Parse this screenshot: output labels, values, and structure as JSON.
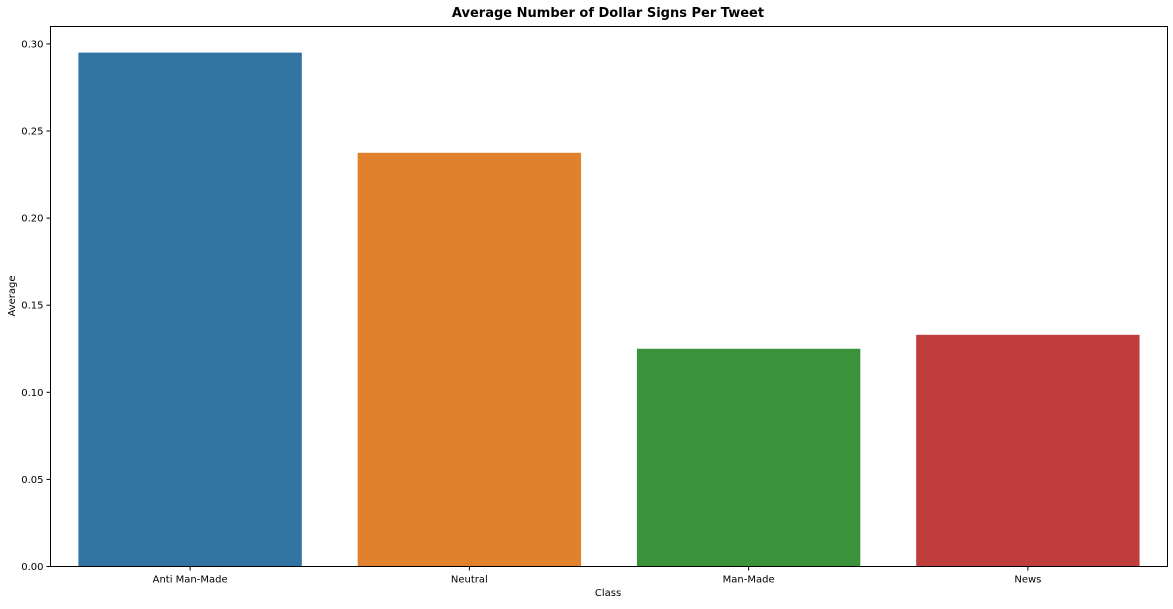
{
  "chart_data": {
    "type": "bar",
    "title": "Average Number of Dollar Signs Per Tweet",
    "xlabel": "Class",
    "ylabel": "Average",
    "categories": [
      "Anti Man-Made",
      "Neutral",
      "Man-Made",
      "News"
    ],
    "values": [
      0.295,
      0.2375,
      0.125,
      0.133
    ],
    "colors": [
      "#3274a1",
      "#e1812c",
      "#3a923a",
      "#c03d3e"
    ],
    "ylim": [
      0,
      0.31
    ],
    "yticks": [
      "0.00",
      "0.05",
      "0.10",
      "0.15",
      "0.20",
      "0.25",
      "0.30"
    ],
    "grid": false,
    "legend": "none"
  }
}
